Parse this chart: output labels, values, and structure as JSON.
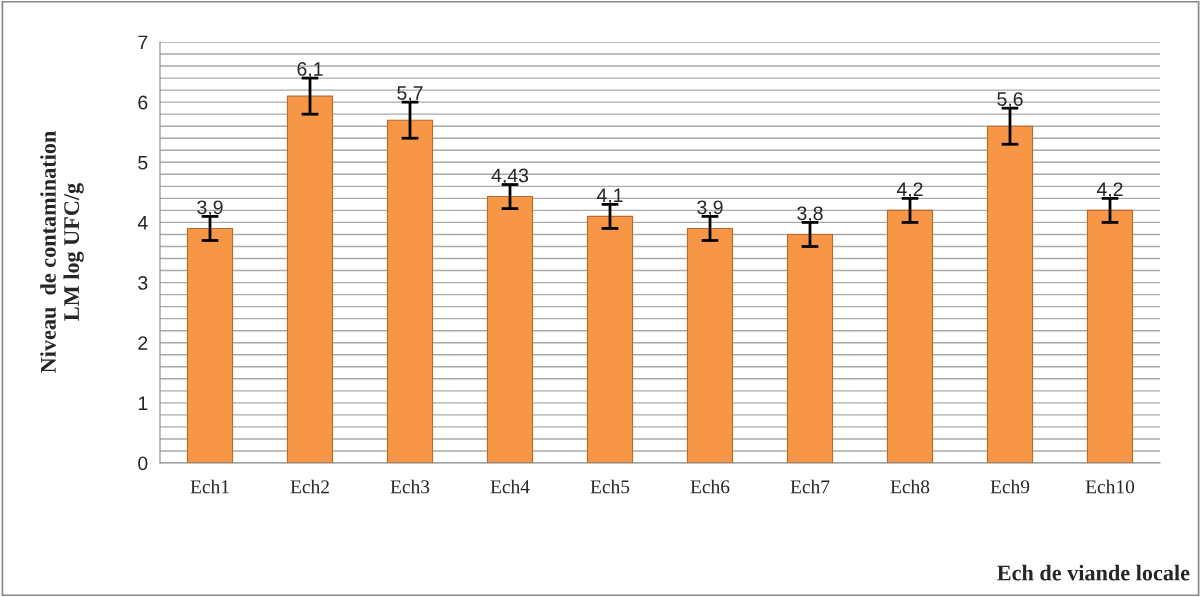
{
  "chart_data": {
    "type": "bar",
    "xlabel": "Ech de viande locale",
    "ylabel": "Niveau  de contamination\nLM log UFC/g",
    "categories": [
      "Ech1",
      "Ech2",
      "Ech3",
      "Ech4",
      "Ech5",
      "Ech6",
      "Ech7",
      "Ech8",
      "Ech9",
      "Ech10"
    ],
    "values": [
      3.9,
      6.1,
      5.7,
      4.43,
      4.1,
      3.9,
      3.8,
      4.2,
      5.6,
      4.2
    ],
    "errors": [
      0.2,
      0.3,
      0.3,
      0.2,
      0.2,
      0.2,
      0.2,
      0.2,
      0.3,
      0.2
    ],
    "value_labels": [
      "3,9",
      "6,1",
      "5,7",
      "4,43",
      "4,1",
      "3,9",
      "3,8",
      "4,2",
      "5,6",
      "4,2"
    ],
    "color": "#f79646",
    "ylim": [
      0,
      7
    ],
    "yticks": [
      0,
      {
        "value": 0.2,
        "label": null
      },
      {
        "value": 0.4,
        "label": null
      },
      {
        "value": 0.6,
        "label": null
      },
      {
        "value": 0.8,
        "label": null
      },
      1,
      {
        "value": 1.2,
        "label": null
      },
      {
        "value": 1.4,
        "label": null
      },
      {
        "value": 1.6,
        "label": null
      },
      {
        "value": 1.8,
        "label": null
      },
      2,
      {
        "value": 2.2,
        "label": null
      },
      {
        "value": 2.4,
        "label": null
      },
      {
        "value": 2.6,
        "label": null
      },
      {
        "value": 2.8,
        "label": null
      },
      3,
      {
        "value": 3.2,
        "label": null
      },
      {
        "value": 3.4,
        "label": null
      },
      {
        "value": 3.6,
        "label": null
      },
      {
        "value": 3.8,
        "label": null
      },
      4,
      {
        "value": 4.2,
        "label": null
      },
      {
        "value": 4.4,
        "label": null
      },
      {
        "value": 4.6,
        "label": null
      },
      {
        "value": 4.8,
        "label": null
      },
      5,
      {
        "value": 5.2,
        "label": null
      },
      {
        "value": 5.4,
        "label": null
      },
      {
        "value": 5.6,
        "label": null
      },
      {
        "value": 5.8,
        "label": null
      },
      6,
      {
        "value": 6.2,
        "label": null
      },
      {
        "value": 6.4,
        "label": null
      },
      {
        "value": 6.6,
        "label": null
      },
      {
        "value": 6.8,
        "label": null
      },
      7
    ],
    "grid": "y",
    "legend": false
  }
}
